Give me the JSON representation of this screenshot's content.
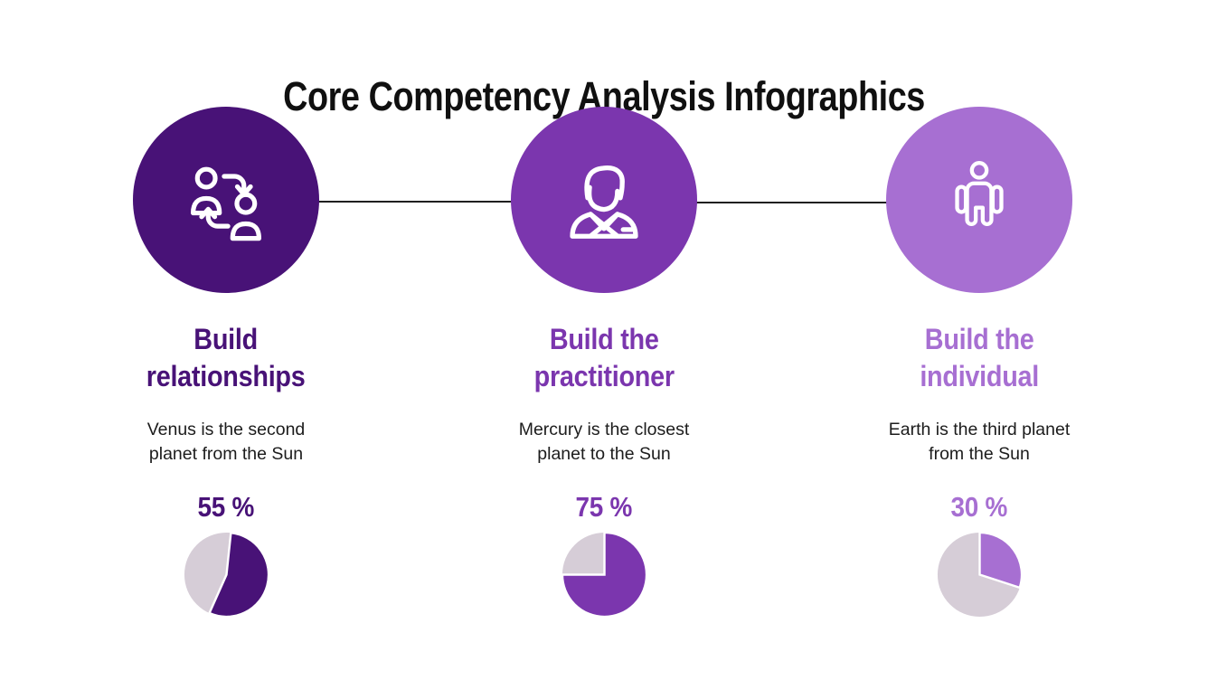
{
  "slide": {
    "title": "Core Competency Analysis Infographics",
    "background_color": "#ffffff",
    "connector_color": "#1f1f1f"
  },
  "colors": {
    "dark_purple": "#481277",
    "medium_purple": "#7B36AE",
    "light_purple": "#A76FD2",
    "pie_remainder_gray": "#D6CDD7",
    "title_black": "#101010",
    "body_text": "#1c1c1c"
  },
  "columns": [
    {
      "icon": "people-exchange-icon",
      "accent_color": "#481277",
      "heading_lines": [
        "Build",
        "relationships"
      ],
      "description_lines": [
        "Venus is the second",
        "planet from the Sun"
      ],
      "percent_label": "55 %",
      "percent": 55
    },
    {
      "icon": "practitioner-person-icon",
      "accent_color": "#7B36AE",
      "heading_lines": [
        "Build the",
        "practitioner"
      ],
      "description_lines": [
        "Mercury is the closest",
        "planet to the Sun"
      ],
      "percent_label": "75 %",
      "percent": 75
    },
    {
      "icon": "standing-person-icon",
      "accent_color": "#A76FD2",
      "heading_lines": [
        "Build the",
        "individual"
      ],
      "description_lines": [
        "Earth is the third planet",
        "from the Sun"
      ],
      "percent_label": "30 %",
      "percent": 30
    }
  ],
  "chart_data": [
    {
      "type": "pie",
      "title": "Build relationships",
      "value_label": "55 %",
      "values": [
        55,
        45
      ],
      "colors": [
        "#481277",
        "#D6CDD7"
      ],
      "start_deg": 6,
      "legend": "off"
    },
    {
      "type": "pie",
      "title": "Build the practitioner",
      "value_label": "75 %",
      "values": [
        75,
        25
      ],
      "colors": [
        "#7B36AE",
        "#D6CDD7"
      ],
      "start_deg": 0,
      "legend": "off"
    },
    {
      "type": "pie",
      "title": "Build the individual",
      "value_label": "30 %",
      "values": [
        30,
        70
      ],
      "colors": [
        "#A76FD2",
        "#D6CDD7"
      ],
      "start_deg": 0,
      "legend": "off"
    }
  ]
}
